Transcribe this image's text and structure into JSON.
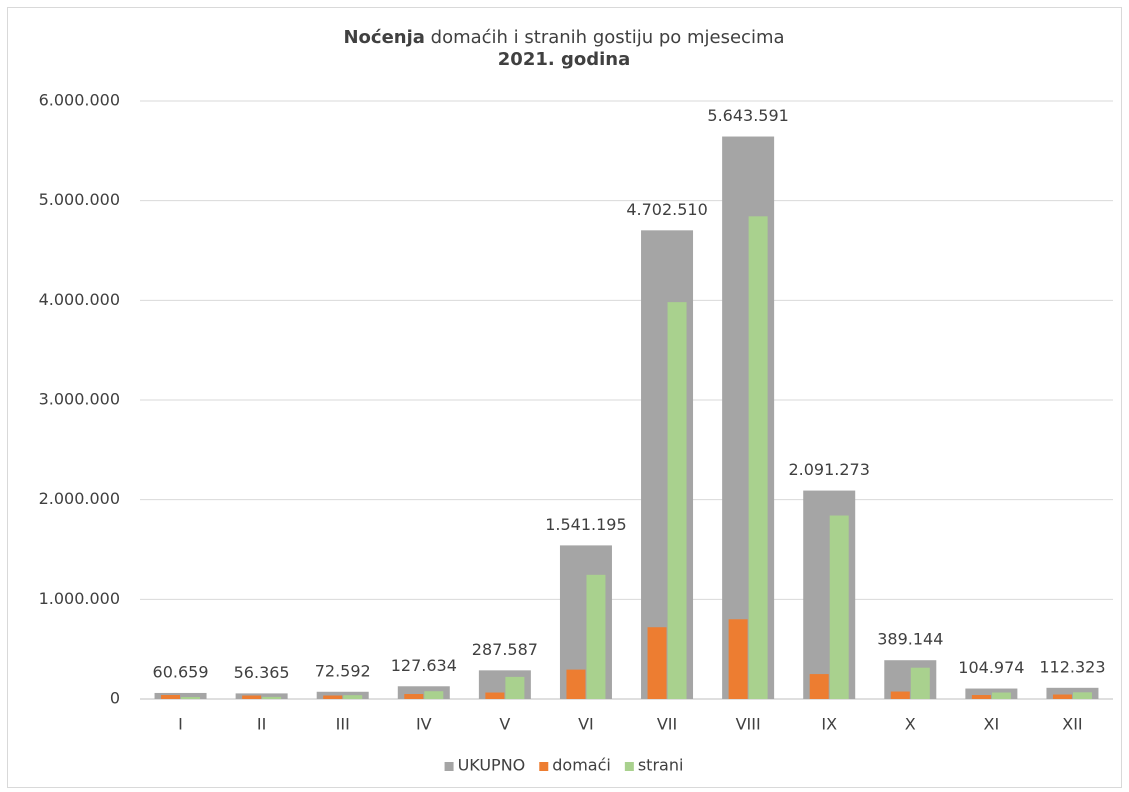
{
  "chart_data": {
    "type": "bar",
    "title_bold": "Noćenja",
    "title": "domaćih i stranih gostiju po mjesecima",
    "subtitle": "2021. godina",
    "categories": [
      "I",
      "II",
      "III",
      "IV",
      "V",
      "VI",
      "VII",
      "VIII",
      "IX",
      "X",
      "XI",
      "XII"
    ],
    "series": [
      {
        "name": "UKUPNO",
        "color": "#a5a5a5",
        "values": [
          60659,
          56365,
          72592,
          127634,
          287587,
          1541195,
          4702510,
          5643591,
          2091273,
          389144,
          104974,
          112323
        ],
        "value_labels": [
          "60.659",
          "56.365",
          "72.592",
          "127.634",
          "287.587",
          "1.541.195",
          "4.702.510",
          "5.643.591",
          "2.091.273",
          "389.144",
          "104.974",
          "112.323"
        ]
      },
      {
        "name": "domaći",
        "color": "#ed7d31",
        "values": [
          40000,
          35000,
          35000,
          50000,
          65000,
          295000,
          720000,
          800000,
          250000,
          75000,
          40000,
          45000
        ]
      },
      {
        "name": "strani",
        "color": "#a9d18e",
        "values": [
          20000,
          21000,
          38000,
          78000,
          222000,
          1246000,
          3982000,
          4843000,
          1841000,
          314000,
          65000,
          67000
        ]
      }
    ],
    "ylim": [
      0,
      6000000
    ],
    "yticks": [
      0,
      {
        "value": 1000000,
        "label": "1.000.000"
      },
      {
        "value": 2000000,
        "label": "2.000.000"
      },
      {
        "value": 3000000,
        "label": "3.000.000"
      },
      {
        "value": 4000000,
        "label": "4.000.000"
      },
      {
        "value": 5000000,
        "label": "5.000.000"
      },
      {
        "value": 6000000,
        "label": "6.000.000"
      }
    ],
    "grid": true,
    "legend": "bottom"
  }
}
